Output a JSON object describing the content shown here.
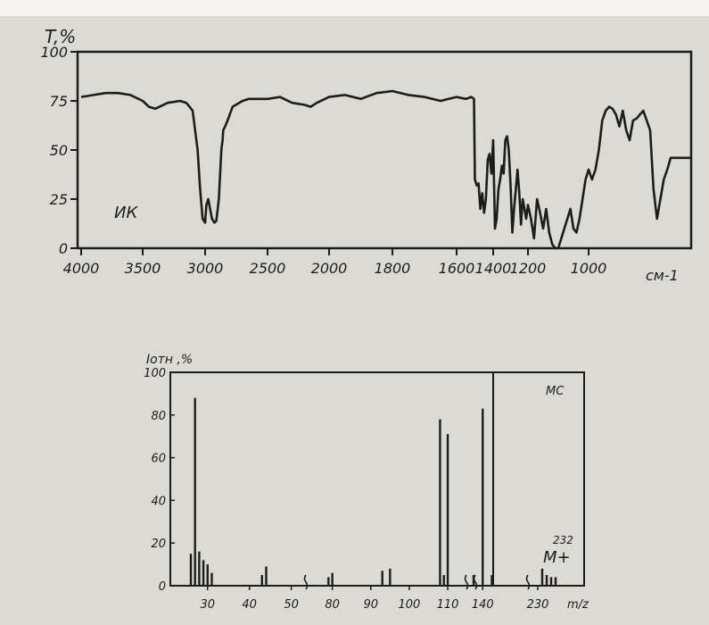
{
  "chart_data": [
    {
      "type": "line",
      "chart_label": "ИК",
      "ylabel": "T,%",
      "xlabel": "",
      "x_unit": "см-1",
      "yticks": [
        "0",
        "25",
        "50",
        "75",
        "100"
      ],
      "xticks": [
        "4000",
        "3500",
        "3000",
        "2500",
        "2000",
        "1800",
        "1600",
        "1400",
        "1200",
        "1000"
      ],
      "x_scale": "piecewise-linear (4000–2000 compressed, 2000–1000 expanded)",
      "xlim": [
        4000,
        700
      ],
      "ylim": [
        0,
        100
      ],
      "grid": false,
      "series": [
        {
          "x": [
            4000,
            3900,
            3800,
            3700,
            3600,
            3500,
            3450,
            3400,
            3300,
            3200,
            3150,
            3100,
            3060,
            3040,
            3020,
            3000,
            2990,
            2975,
            2960,
            2945,
            2925,
            2910,
            2890,
            2870,
            2860,
            2855,
            2840,
            2820,
            2780,
            2700,
            2650,
            2600,
            2500,
            2400,
            2300,
            2200,
            2150,
            2100,
            2000,
            1950,
            1900,
            1850,
            1800,
            1750,
            1700,
            1650,
            1600,
            1550,
            1520,
            1505,
            1500,
            1490,
            1480,
            1470,
            1460,
            1450,
            1440,
            1430,
            1420,
            1410,
            1400,
            1390,
            1380,
            1370,
            1360,
            1350,
            1340,
            1330,
            1320,
            1310,
            1300,
            1290,
            1280,
            1270,
            1260,
            1250,
            1240,
            1230,
            1220,
            1210,
            1200,
            1190,
            1180,
            1170,
            1160,
            1150,
            1140,
            1130,
            1120,
            1110,
            1100,
            1090,
            1080,
            1070,
            1060,
            1050,
            1040,
            1030,
            1020,
            1010,
            1000,
            990,
            980,
            970,
            960,
            950,
            940,
            930,
            920,
            910,
            900,
            890,
            880,
            870,
            860,
            850,
            840,
            830,
            820,
            810,
            800,
            790,
            780,
            770,
            760,
            750,
            740,
            730,
            720,
            710,
            700
          ],
          "y": [
            77,
            78,
            79,
            79,
            78,
            75,
            72,
            71,
            74,
            75,
            74,
            70,
            50,
            30,
            15,
            13,
            22,
            25,
            20,
            15,
            13,
            14,
            25,
            50,
            55,
            60,
            62,
            65,
            72,
            75,
            76,
            76,
            76,
            77,
            74,
            73,
            72,
            74,
            77,
            78,
            76,
            79,
            80,
            78,
            77,
            75,
            77,
            76,
            77,
            76,
            35,
            32,
            33,
            20,
            28,
            18,
            25,
            45,
            48,
            38,
            55,
            10,
            15,
            30,
            35,
            42,
            38,
            55,
            57,
            50,
            32,
            8,
            20,
            30,
            40,
            28,
            12,
            25,
            20,
            15,
            22,
            15,
            5,
            25,
            18,
            10,
            20,
            8,
            2,
            0,
            0,
            5,
            10,
            15,
            20,
            10,
            8,
            15,
            25,
            35,
            40,
            35,
            40,
            50,
            65,
            70,
            72,
            71,
            68,
            62,
            70,
            60,
            55,
            65,
            66,
            68,
            70,
            65,
            60,
            30,
            15,
            25,
            35,
            40,
            46,
            46,
            46,
            46,
            46,
            46,
            46
          ]
        }
      ]
    },
    {
      "type": "bar",
      "chart_label": "МС",
      "ylabel": "Iотн ,%",
      "xlabel": "m/z",
      "yticks": [
        "0",
        "20",
        "40",
        "60",
        "80",
        "100"
      ],
      "xticks": [
        "30",
        "40",
        "50",
        "80",
        "90",
        "100",
        "110",
        "140",
        "230"
      ],
      "ylim": [
        0,
        100
      ],
      "grid": false,
      "segments": [
        [
          26,
          52
        ],
        [
          78,
          113
        ],
        [
          139,
          143
        ],
        [
          229,
          236
        ]
      ],
      "x": [
        26,
        27,
        28,
        29,
        30,
        31,
        43,
        44,
        79,
        80,
        93,
        95,
        108,
        109,
        110,
        139,
        140,
        141,
        231,
        232,
        233,
        234
      ],
      "values": [
        15,
        88,
        16,
        12,
        10,
        6,
        5,
        9,
        4,
        6,
        7,
        8,
        78,
        5,
        71,
        5,
        83,
        5,
        8,
        5,
        4,
        4
      ],
      "molecular_ion": {
        "mz": "232",
        "label": "M+"
      }
    }
  ]
}
